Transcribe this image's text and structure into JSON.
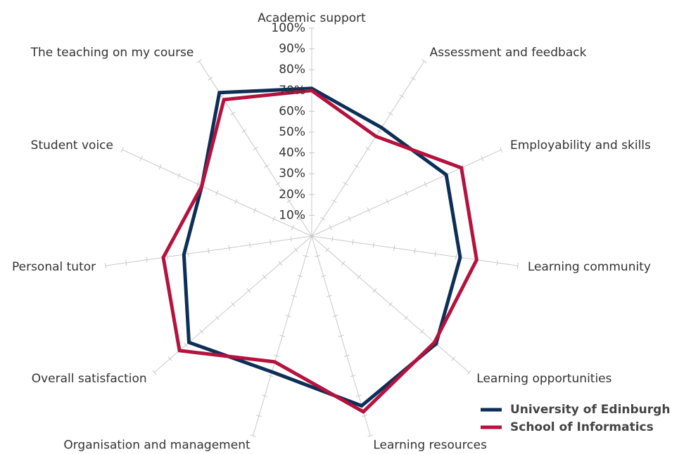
{
  "chart_data": {
    "type": "radar",
    "categories": [
      "Academic support",
      "Assessment and feedback",
      "Employability and skills",
      "Learning community",
      "Learning opportunities",
      "Learning resources",
      "Organisation and management",
      "Overall satisfaction",
      "Personal tutor",
      "Student voice",
      "The teaching on my course"
    ],
    "series": [
      {
        "name": "University of Edinburgh",
        "color": "#0d2f57",
        "values": [
          71,
          62,
          71,
          72,
          79,
          85,
          68,
          78,
          62,
          58,
          82
        ]
      },
      {
        "name": "School of Informatics",
        "color": "#b5123e",
        "values": [
          70,
          57,
          79,
          80,
          78,
          88,
          63,
          84,
          72,
          58,
          78
        ]
      }
    ],
    "ylim": [
      0,
      100
    ],
    "yticks": [
      {
        "value": 10,
        "label": "10%"
      },
      {
        "value": 20,
        "label": "20%"
      },
      {
        "value": 30,
        "label": "30%"
      },
      {
        "value": 40,
        "label": "40%"
      },
      {
        "value": 50,
        "label": "50%"
      },
      {
        "value": 60,
        "label": "60%"
      },
      {
        "value": 70,
        "label": "70%"
      },
      {
        "value": 80,
        "label": "80%"
      },
      {
        "value": 90,
        "label": "90%"
      },
      {
        "value": 100,
        "label": "100%"
      }
    ],
    "legend": "bottom-right"
  }
}
